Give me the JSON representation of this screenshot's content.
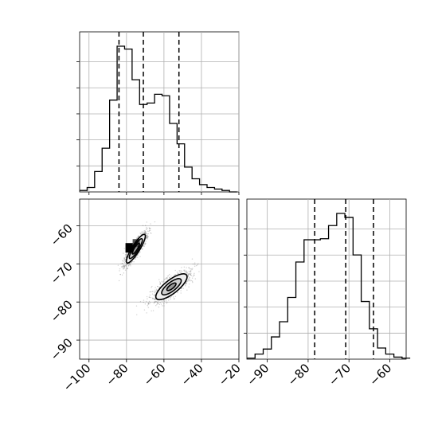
{
  "chart_data": [
    {
      "panel": "top-left",
      "type": "histogram",
      "x_ticks": [
        -100,
        -80,
        -60,
        -40,
        -20
      ],
      "xlim": [
        -105,
        -20
      ],
      "bin_edges": [
        -105,
        -101,
        -97,
        -93,
        -89,
        -85,
        -81,
        -77,
        -73,
        -69,
        -65,
        -61,
        -57,
        -53,
        -49,
        -45,
        -41,
        -37,
        -33,
        -29,
        -25,
        -21
      ],
      "counts": [
        1,
        3,
        14,
        30,
        63,
        100,
        98,
        77,
        60,
        61,
        67,
        66,
        47,
        33,
        17,
        9,
        5,
        3,
        2,
        1,
        0
      ],
      "quantile_lines": [
        -84,
        -71,
        -52
      ],
      "grid": true,
      "tick_labels_shown": false
    },
    {
      "panel": "bottom-left",
      "type": "scatter-density",
      "x_ticks": [
        -100,
        -80,
        -60,
        -40,
        -20
      ],
      "y_ticks": [
        -60,
        -70,
        -80,
        -90
      ],
      "xlim": [
        -105,
        -20
      ],
      "ylim": [
        -95,
        -53
      ],
      "clusters": [
        {
          "center": [
            -75,
            -66
          ],
          "contours": [
            {
              "rx": 21,
              "ry": 4.9,
              "angle": 58
            },
            {
              "rx": 14.5,
              "ry": 3.4,
              "angle": 58
            },
            {
              "rx": 8,
              "ry": 1.9,
              "angle": 58
            }
          ]
        },
        {
          "center": [
            -56,
            -76
          ],
          "contours": [
            {
              "rx": 24,
              "ry": 8.5,
              "angle": 38
            },
            {
              "rx": 15,
              "ry": 5.5,
              "angle": 38
            },
            {
              "rx": 7,
              "ry": 2.6,
              "angle": 38
            }
          ]
        }
      ],
      "grid": true
    },
    {
      "panel": "bottom-right",
      "type": "histogram",
      "x_ticks": [
        -90,
        -80,
        -70,
        -60
      ],
      "xlim": [
        -95,
        -56
      ],
      "bin_edges": [
        -95,
        -93,
        -91,
        -89,
        -87,
        -85,
        -83,
        -81,
        -79,
        -77,
        -75,
        -73,
        -71,
        -69,
        -67,
        -65,
        -63,
        -61,
        -59,
        -57,
        -55
      ],
      "counts": [
        1,
        5,
        10,
        22,
        37,
        61,
        96,
        118,
        118,
        119,
        132,
        144,
        140,
        103,
        57,
        30,
        11,
        5,
        2,
        1
      ],
      "quantile_lines": [
        -78.4,
        -70.8,
        -64
      ],
      "grid": true,
      "tick_labels_shown": true
    }
  ]
}
